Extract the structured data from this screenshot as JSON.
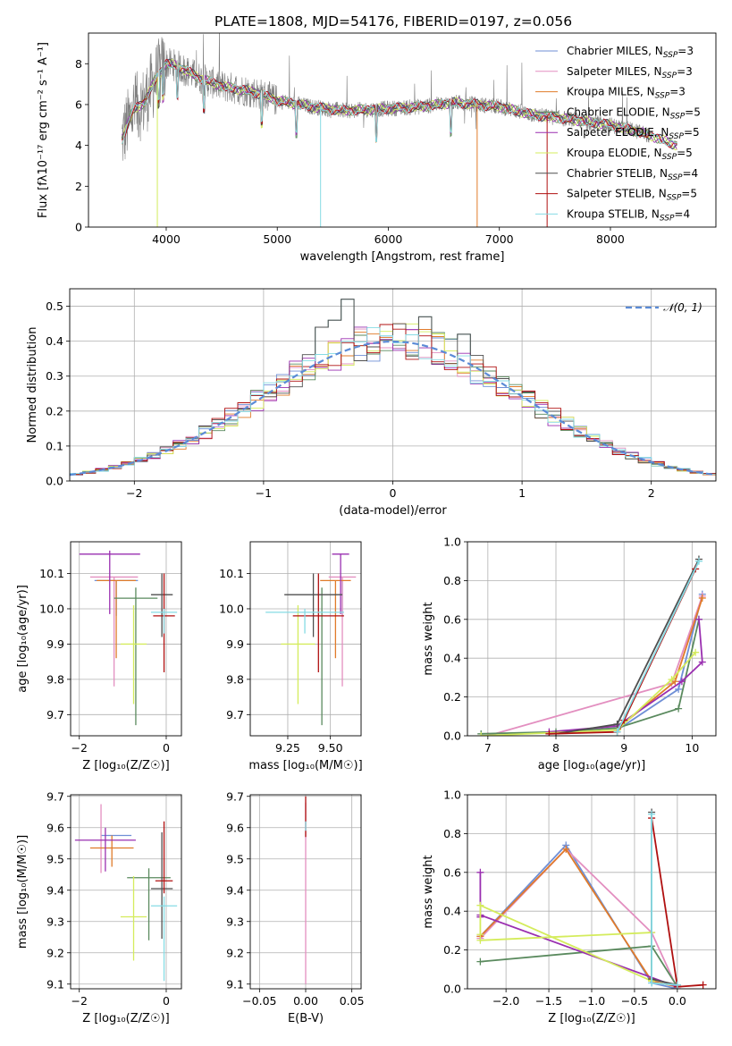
{
  "figure": {
    "title": "PLATE=1808, MJD=54176, FIBERID=0197, z=0.056"
  },
  "models": [
    {
      "name": "Chabrier MILES",
      "nssp": "3",
      "color": "#6f8fd6"
    },
    {
      "name": "Salpeter MILES",
      "nssp": "3",
      "color": "#e38fc0"
    },
    {
      "name": "Kroupa MILES",
      "nssp": "3",
      "color": "#e07b2a"
    },
    {
      "name": "Chabrier ELODIE",
      "nssp": "5",
      "color": "#5a8a5e"
    },
    {
      "name": "Salpeter ELODIE",
      "nssp": "5",
      "color": "#9a2fb0"
    },
    {
      "name": "Kroupa ELODIE",
      "nssp": "5",
      "color": "#d4ec5c"
    },
    {
      "name": "Chabrier STELIB",
      "nssp": "4",
      "color": "#4f4f4f"
    },
    {
      "name": "Salpeter STELIB",
      "nssp": "5",
      "color": "#b01010"
    },
    {
      "name": "Kroupa STELIB",
      "nssp": "4",
      "color": "#86dbe4"
    }
  ],
  "chart_data": [
    {
      "id": "spectrum",
      "type": "line",
      "xlabel": "wavelength [Angstrom, rest frame]",
      "ylabel": "Flux [fλ10⁻¹⁷ erg cm⁻² s⁻¹ A⁻¹]",
      "xlim": [
        3300,
        8950
      ],
      "ylim": [
        0,
        9.5
      ],
      "xticks": [
        4000,
        5000,
        6000,
        7000,
        8000
      ],
      "yticks": [
        0,
        2,
        4,
        6,
        8
      ],
      "legend_position": "upper right",
      "data_color": "#808080",
      "continuum": {
        "x": [
          3600,
          3700,
          3800,
          3900,
          4000,
          4100,
          4300,
          4500,
          4800,
          5000,
          5300,
          5600,
          6000,
          6300,
          6600,
          7000,
          7300,
          7600,
          8000,
          8300,
          8600
        ],
        "y": [
          4.3,
          5.7,
          6.1,
          7.2,
          8.0,
          7.9,
          7.3,
          6.9,
          6.6,
          6.2,
          5.9,
          5.7,
          5.8,
          5.9,
          6.1,
          5.9,
          5.5,
          5.3,
          5.0,
          4.6,
          4.0
        ]
      },
      "data_range": [
        3600,
        8350
      ],
      "model_range": [
        3600,
        8600
      ]
    },
    {
      "id": "residual-histogram",
      "type": "histogram",
      "xlabel": "(data-model)/error",
      "ylabel": "Normed distribution",
      "xlim": [
        -2.5,
        2.5
      ],
      "ylim": [
        0,
        0.55
      ],
      "xticks": [
        -2,
        -1,
        0,
        1,
        2
      ],
      "yticks": [
        0.0,
        0.1,
        0.2,
        0.3,
        0.4,
        0.5
      ],
      "bin_width": 0.1,
      "legend_position": "upper right",
      "gaussian_label": "𝒩(0, 1)",
      "gaussian_color": "#5b8bd6",
      "peak_bins": {
        "-0.35": 0.52,
        "-0.45": 0.46,
        "0.25": 0.47,
        "0.55": 0.42,
        "-0.55": 0.44
      }
    },
    {
      "id": "age-vs-Z",
      "type": "errorbar",
      "xlabel": "Z [log₁₀(Z/Z☉)]",
      "ylabel": "age  [log₁₀(age/yr)]",
      "xlim": [
        -2.2,
        0.35
      ],
      "ylim": [
        9.64,
        10.19
      ],
      "xticks": [
        -2,
        0
      ],
      "yticks": [
        9.7,
        9.8,
        9.9,
        10.0,
        10.1
      ],
      "points": [
        {
          "x": -1.15,
          "xerr": 0.5,
          "y": 10.08,
          "yerr_lo": 0.1,
          "yerr_hi": 0.0
        },
        {
          "x": -1.2,
          "xerr": 0.55,
          "y": 10.09,
          "yerr_lo": 0.31,
          "yerr_hi": 0.0
        },
        {
          "x": -1.15,
          "xerr": 0.45,
          "y": 10.08,
          "yerr_lo": 0.22,
          "yerr_hi": 0.0
        },
        {
          "x": -0.7,
          "xerr": 0.5,
          "y": 10.03,
          "yerr_lo": 0.36,
          "yerr_hi": 0.03
        },
        {
          "x": -1.3,
          "xerr": 0.7,
          "y": 10.155,
          "yerr_lo": 0.17,
          "yerr_hi": 0.01
        },
        {
          "x": -0.75,
          "xerr": 0.3,
          "y": 9.9,
          "yerr_lo": 0.17,
          "yerr_hi": 0.11
        },
        {
          "x": -0.1,
          "xerr": 0.25,
          "y": 10.04,
          "yerr_lo": 0.12,
          "yerr_hi": 0.06
        },
        {
          "x": -0.05,
          "xerr": 0.25,
          "y": 9.98,
          "yerr_lo": 0.16,
          "yerr_hi": 0.12
        },
        {
          "x": -0.05,
          "xerr": 0.3,
          "y": 9.99,
          "yerr_lo": 0.06,
          "yerr_hi": 0.01
        }
      ]
    },
    {
      "id": "age-vs-mass",
      "type": "errorbar",
      "xlabel": "mass [log₁₀(M/M☉)]",
      "ylabel": "",
      "xlim": [
        9.03,
        9.68
      ],
      "ylim": [
        9.64,
        10.19
      ],
      "xticks": [
        9.25,
        9.5
      ],
      "yticks": [
        9.7,
        9.8,
        9.9,
        10.0,
        10.1
      ],
      "points": [
        {
          "x": 9.57,
          "xerr": 0.0,
          "y": 10.08,
          "yerr_lo": 0.1,
          "yerr_hi": 0.0
        },
        {
          "x": 9.57,
          "xerr": 0.08,
          "y": 10.09,
          "yerr_lo": 0.31,
          "yerr_hi": 0.0
        },
        {
          "x": 9.53,
          "xerr": 0.09,
          "y": 10.08,
          "yerr_lo": 0.22,
          "yerr_hi": 0.0
        },
        {
          "x": 9.45,
          "xerr": 0.0,
          "y": 10.03,
          "yerr_lo": 0.36,
          "yerr_hi": 0.03
        },
        {
          "x": 9.56,
          "xerr": 0.05,
          "y": 10.155,
          "yerr_lo": 0.17,
          "yerr_hi": 0.0
        },
        {
          "x": 9.31,
          "xerr": 0.1,
          "y": 9.9,
          "yerr_lo": 0.17,
          "yerr_hi": 0.11
        },
        {
          "x": 9.4,
          "xerr": 0.17,
          "y": 10.04,
          "yerr_lo": 0.12,
          "yerr_hi": 0.06
        },
        {
          "x": 9.43,
          "xerr": 0.15,
          "y": 9.98,
          "yerr_lo": 0.16,
          "yerr_hi": 0.12
        },
        {
          "x": 9.35,
          "xerr": 0.23,
          "y": 9.99,
          "yerr_lo": 0.06,
          "yerr_hi": 0.01
        }
      ]
    },
    {
      "id": "weight-vs-age",
      "type": "line",
      "xlabel": "age  [log₁₀(age/yr)]",
      "ylabel": "mass weight",
      "xlim": [
        6.7,
        10.35
      ],
      "ylim": [
        0,
        1.0
      ],
      "xticks": [
        7,
        8,
        9,
        10
      ],
      "yticks": [
        0.0,
        0.2,
        0.4,
        0.6,
        0.8,
        1.0
      ],
      "series": [
        {
          "x": [
            8.9,
            9.8,
            10.15
          ],
          "y": [
            0.03,
            0.24,
            0.73
          ]
        },
        {
          "x": [
            7.0,
            9.7,
            10.15
          ],
          "y": [
            0.0,
            0.27,
            0.72
          ]
        },
        {
          "x": [
            8.95,
            9.75,
            10.15
          ],
          "y": [
            0.05,
            0.28,
            0.71
          ]
        },
        {
          "x": [
            6.9,
            8.0,
            8.9,
            9.8,
            10.1
          ],
          "y": [
            0.01,
            0.02,
            0.04,
            0.14,
            0.6
          ]
        },
        {
          "x": [
            7.9,
            8.9,
            9.85,
            10.15,
            10.1
          ],
          "y": [
            0.02,
            0.05,
            0.28,
            0.38,
            0.6
          ]
        },
        {
          "x": [
            6.9,
            8.9,
            9.7,
            10.05
          ],
          "y": [
            0.0,
            0.03,
            0.29,
            0.43
          ]
        },
        {
          "x": [
            8.0,
            8.9,
            10.1
          ],
          "y": [
            0.01,
            0.06,
            0.91
          ]
        },
        {
          "x": [
            7.9,
            8.9,
            9.0,
            10.05
          ],
          "y": [
            0.01,
            0.02,
            0.08,
            0.86
          ]
        },
        {
          "x": [
            8.9,
            10.1
          ],
          "y": [
            0.02,
            0.9
          ]
        }
      ]
    },
    {
      "id": "mass-vs-Z",
      "type": "errorbar",
      "xlabel": "Z [log₁₀(Z/Z☉)]",
      "ylabel": "mass [log₁₀(M/M☉)]",
      "xlim": [
        -2.2,
        0.35
      ],
      "ylim": [
        9.085,
        9.705
      ],
      "xticks": [
        -2,
        0
      ],
      "yticks": [
        9.1,
        9.2,
        9.3,
        9.4,
        9.5,
        9.6,
        9.7
      ],
      "points": [
        {
          "x": -1.15,
          "xerr": 0.35,
          "y": 9.575,
          "yerr_lo": 0.0,
          "yerr_hi": 0.0
        },
        {
          "x": -1.5,
          "xerr": 0.0,
          "y": 9.665,
          "yerr_lo": 0.21,
          "yerr_hi": 0.01
        },
        {
          "x": -1.25,
          "xerr": 0.5,
          "y": 9.535,
          "yerr_lo": 0.06,
          "yerr_hi": 0.04
        },
        {
          "x": -0.4,
          "xerr": 0.5,
          "y": 9.44,
          "yerr_lo": 0.2,
          "yerr_hi": 0.03
        },
        {
          "x": -1.4,
          "xerr": 0.7,
          "y": 9.56,
          "yerr_lo": 0.1,
          "yerr_hi": 0.04
        },
        {
          "x": -0.75,
          "xerr": 0.3,
          "y": 9.315,
          "yerr_lo": 0.14,
          "yerr_hi": 0.13
        },
        {
          "x": -0.1,
          "xerr": 0.25,
          "y": 9.405,
          "yerr_lo": 0.16,
          "yerr_hi": 0.18
        },
        {
          "x": -0.05,
          "xerr": 0.2,
          "y": 9.43,
          "yerr_lo": 0.04,
          "yerr_hi": 0.19
        },
        {
          "x": -0.05,
          "xerr": 0.3,
          "y": 9.35,
          "yerr_lo": 0.24,
          "yerr_hi": 0.03
        }
      ]
    },
    {
      "id": "mass-vs-EBV",
      "type": "errorbar",
      "xlabel": "E(B-V)",
      "ylabel": "",
      "xlim": [
        -0.06,
        0.06
      ],
      "ylim": [
        9.085,
        9.705
      ],
      "xticks": [
        -0.05,
        0.0,
        0.05
      ],
      "yticks": [
        9.1,
        9.2,
        9.3,
        9.4,
        9.5,
        9.6,
        9.7
      ],
      "points": [
        {
          "x": 0.0,
          "xerr": 0.0,
          "y": 9.6,
          "yerr_lo": 0.5,
          "yerr_hi": 0.08
        },
        {
          "x": 0.0,
          "xerr": 0.0,
          "y": 9.62,
          "yerr_lo": 0.05,
          "yerr_hi": 0.08
        },
        {
          "x": 0.0,
          "xerr": 0.0,
          "y": 9.6,
          "yerr_lo": 0.01,
          "yerr_hi": 0.02
        }
      ]
    },
    {
      "id": "weight-vs-Z",
      "type": "line",
      "xlabel": "Z [log₁₀(Z/Z☉)]",
      "ylabel": "mass weight",
      "xlim": [
        -2.45,
        0.45
      ],
      "ylim": [
        0,
        1.0
      ],
      "xticks": [
        -2.0,
        -1.5,
        -1.0,
        -0.5,
        0.0
      ],
      "yticks": [
        0.0,
        0.2,
        0.4,
        0.6,
        0.8,
        1.0
      ],
      "series": [
        {
          "x": [
            -2.3,
            -1.3,
            -0.3,
            0.0
          ],
          "y": [
            0.27,
            0.74,
            0.03,
            0.0
          ]
        },
        {
          "x": [
            -2.3,
            -1.3,
            -0.3,
            0.0
          ],
          "y": [
            0.26,
            0.72,
            0.29,
            0.0
          ]
        },
        {
          "x": [
            -2.3,
            -1.3,
            -0.3,
            0.0
          ],
          "y": [
            0.27,
            0.72,
            0.04,
            0.01
          ]
        },
        {
          "x": [
            -2.3,
            -0.3,
            0.0
          ],
          "y": [
            0.14,
            0.22,
            0.01
          ]
        },
        {
          "x": [
            -2.3,
            -2.3,
            -2.3,
            0.0
          ],
          "y": [
            0.6,
            0.37,
            0.38,
            0.01
          ]
        },
        {
          "x": [
            -2.3,
            -0.3,
            -0.3,
            -2.3,
            -2.3
          ],
          "y": [
            0.25,
            0.29,
            0.04,
            0.43,
            0.28
          ]
        },
        {
          "x": [
            -0.3,
            -0.3,
            0.0
          ],
          "y": [
            0.91,
            0.05,
            0.02
          ]
        },
        {
          "x": [
            -0.3,
            0.0,
            0.3
          ],
          "y": [
            0.88,
            0.01,
            0.02
          ]
        },
        {
          "x": [
            -0.3,
            -0.3,
            0.0
          ],
          "y": [
            0.9,
            0.03,
            0.02
          ]
        }
      ]
    }
  ]
}
